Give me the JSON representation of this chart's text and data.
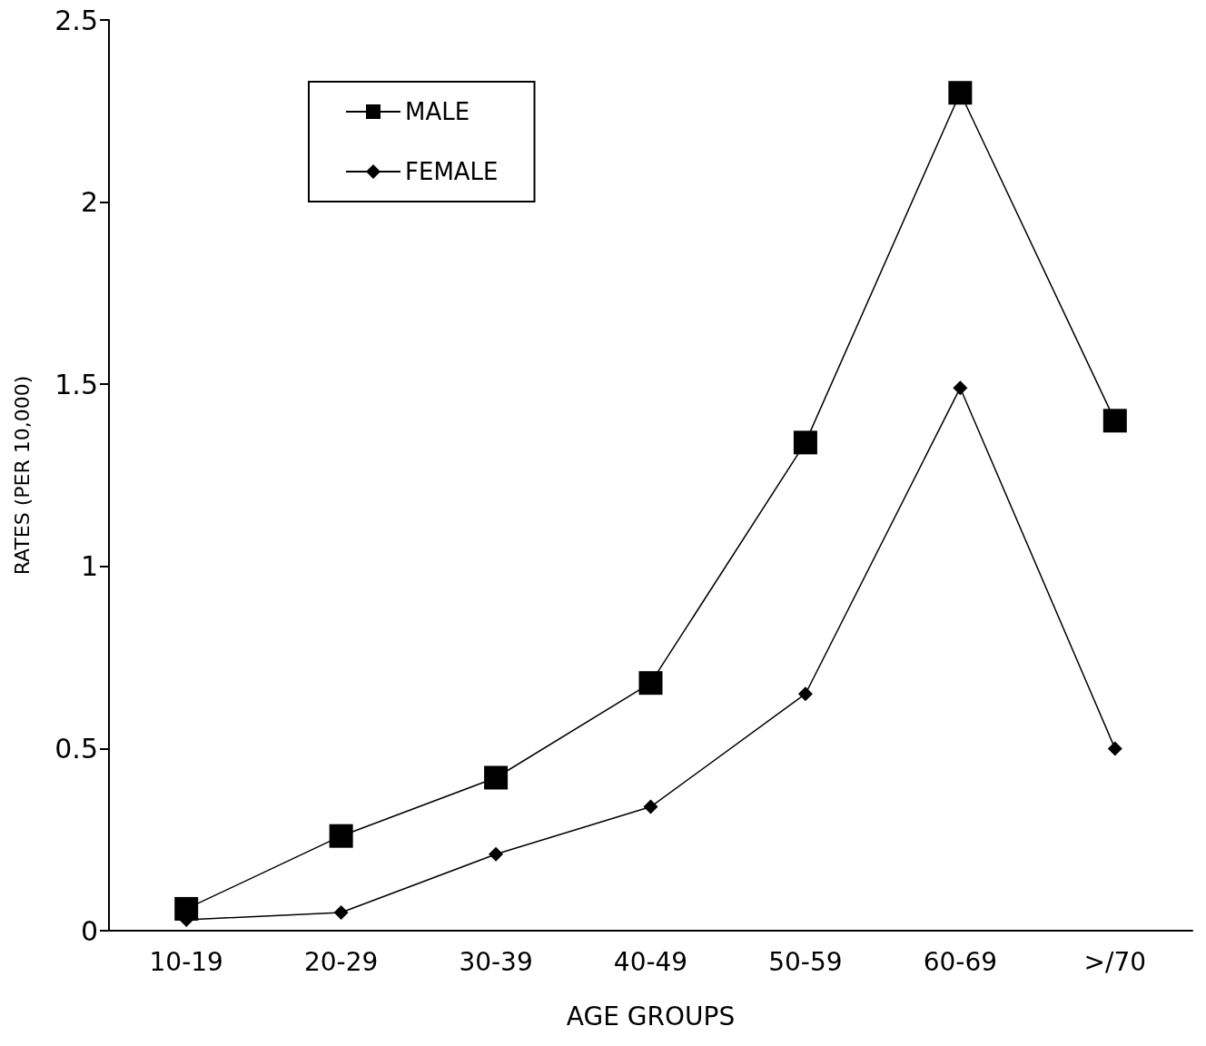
{
  "chart_data": {
    "type": "line",
    "xlabel": "AGE GROUPS",
    "ylabel": "RATES (PER 10,000)",
    "categories": [
      "10-19",
      "20-29",
      "30-39",
      "40-49",
      "50-59",
      "60-69",
      ">/70"
    ],
    "series": [
      {
        "name": "MALE",
        "color": "#000000",
        "marker": "square",
        "values": [
          0.06,
          0.26,
          0.42,
          0.68,
          1.34,
          2.3,
          1.4
        ]
      },
      {
        "name": "FEMALE",
        "color": "#000000",
        "marker": "diamond",
        "values": [
          0.03,
          0.05,
          0.21,
          0.34,
          0.65,
          1.49,
          0.5
        ]
      }
    ],
    "ylim": [
      0,
      2.5
    ],
    "yticks": [
      0,
      0.5,
      1,
      1.5,
      2,
      2.5
    ],
    "grid": false,
    "legend": "top left",
    "line_style": "solid"
  }
}
